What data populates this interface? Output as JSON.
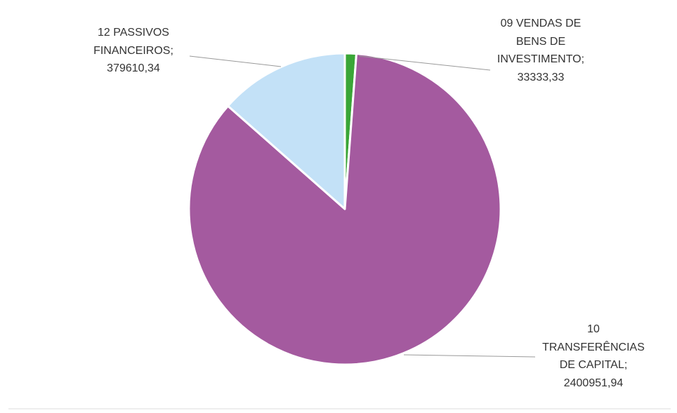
{
  "chart_data": {
    "type": "pie",
    "categories": [
      "09 VENDAS DE BENS DE INVESTIMENTO;",
      "10 TRANSFERÊNCIAS DE CAPITAL;",
      "12 PASSIVOS FINANCEIROS;"
    ],
    "values": [
      33333.33,
      2400951.94,
      379610.34
    ],
    "value_labels": [
      "33333,33",
      "2400951,94",
      "379610,34"
    ],
    "colors": [
      "#3aa637",
      "#a45a9f",
      "#c3e1f7"
    ]
  }
}
